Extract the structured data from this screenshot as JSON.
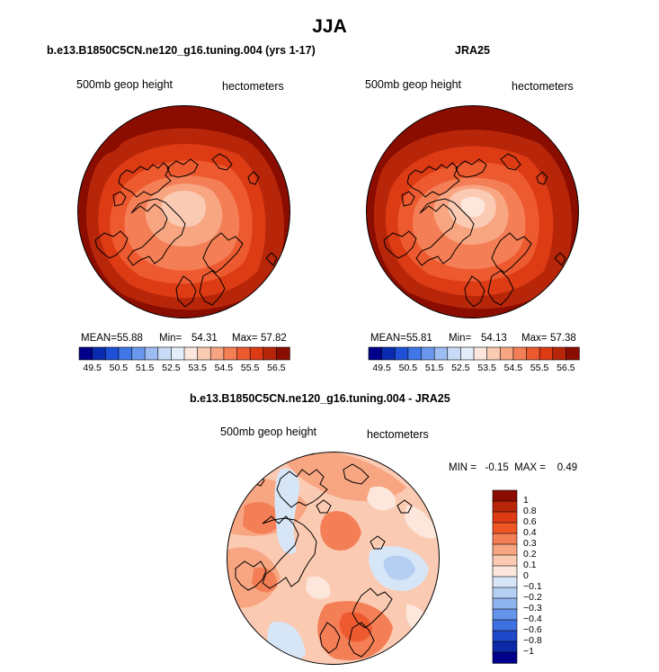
{
  "title": "JJA",
  "panels": [
    {
      "title": "b.e13.B1850C5CN.ne120_g16.tuning.004 (yrs 1-17)",
      "variable": "500mb geop height",
      "units": "hectometers",
      "mean_label": "MEAN=",
      "mean": "55.88",
      "min_label": "Min=",
      "min": "54.31",
      "max_label": "Max=",
      "max": "57.82"
    },
    {
      "title": "JRA25",
      "variable": "500mb geop height",
      "units": "hectometers",
      "mean_label": "MEAN=",
      "mean": "55.81",
      "min_label": "Min=",
      "min": "54.13",
      "max_label": "Max=",
      "max": "57.38"
    },
    {
      "title": "b.e13.B1850C5CN.ne120_g16.tuning.004 - JRA25",
      "variable": "500mb geop height",
      "units": "hectometers",
      "minmax_text": "MIN =   -0.15  MAX =    0.49"
    }
  ],
  "colorbar_abs": {
    "labels": [
      "49.5",
      "50.5",
      "51.5",
      "52.5",
      "53.5",
      "54.5",
      "55.5",
      "56.5"
    ],
    "colors": [
      "#00008b",
      "#0a2ab0",
      "#1f50d8",
      "#3f76e8",
      "#6a98ee",
      "#9cbcf2",
      "#c7dbf6",
      "#e3edf9",
      "#fde7dc",
      "#fbcab2",
      "#f8a682",
      "#f47e55",
      "#ee5a30",
      "#dc3b14",
      "#b8260a",
      "#8b0d00"
    ]
  },
  "colorbar_diff": {
    "labels": [
      "1",
      "0.8",
      "0.6",
      "0.4",
      "0.3",
      "0.2",
      "0.1",
      "0",
      "−0.1",
      "−0.2",
      "−0.3",
      "−0.4",
      "−0.6",
      "−0.8",
      "−1"
    ],
    "colors": [
      "#8b0d00",
      "#b8260a",
      "#dc3b14",
      "#f05526",
      "#f47e55",
      "#f8a682",
      "#fbcab2",
      "#fde7dc",
      "#d7e6f7",
      "#b5cff3",
      "#8fb3ee",
      "#6694e8",
      "#3f70e0",
      "#1f48c8",
      "#0a28a8",
      "#00008b"
    ]
  }
}
